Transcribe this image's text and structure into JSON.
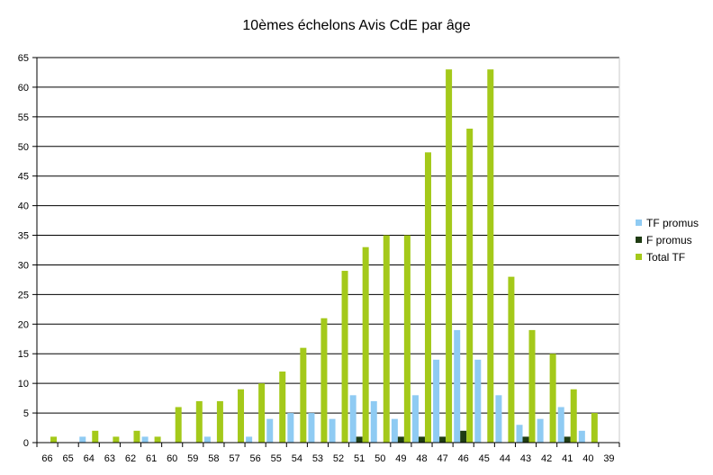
{
  "chart_data": {
    "type": "bar",
    "title": "10èmes échelons Avis CdE par âge",
    "xlabel": "",
    "ylabel": "",
    "ylim": [
      0,
      65
    ],
    "yticks": [
      0,
      5,
      10,
      15,
      20,
      25,
      30,
      35,
      40,
      45,
      50,
      55,
      60,
      65
    ],
    "grid": true,
    "legend_position": "right",
    "categories": [
      "66",
      "65",
      "64",
      "63",
      "62",
      "61",
      "60",
      "59",
      "58",
      "57",
      "56",
      "55",
      "54",
      "53",
      "52",
      "51",
      "50",
      "49",
      "48",
      "47",
      "46",
      "45",
      "44",
      "43",
      "42",
      "41",
      "40",
      "39"
    ],
    "series": [
      {
        "name": "TF promus",
        "color": "#8fcbf3",
        "values": [
          0,
          0,
          1,
          0,
          0,
          1,
          0,
          0,
          1,
          0,
          1,
          4,
          5,
          5,
          4,
          8,
          7,
          4,
          8,
          14,
          19,
          14,
          8,
          3,
          4,
          6,
          2,
          0
        ]
      },
      {
        "name": "F promus",
        "color": "#1f3c13",
        "values": [
          0,
          0,
          0,
          0,
          0,
          0,
          0,
          0,
          0,
          0,
          0,
          0,
          0,
          0,
          0,
          1,
          0,
          1,
          1,
          1,
          2,
          0,
          0,
          1,
          0,
          1,
          0,
          0
        ]
      },
      {
        "name": "Total TF",
        "color": "#a4c91a",
        "values": [
          1,
          0,
          2,
          1,
          2,
          1,
          6,
          7,
          7,
          9,
          10,
          12,
          16,
          21,
          29,
          33,
          35,
          35,
          49,
          63,
          53,
          63,
          28,
          19,
          15,
          9,
          5,
          0
        ]
      }
    ]
  }
}
